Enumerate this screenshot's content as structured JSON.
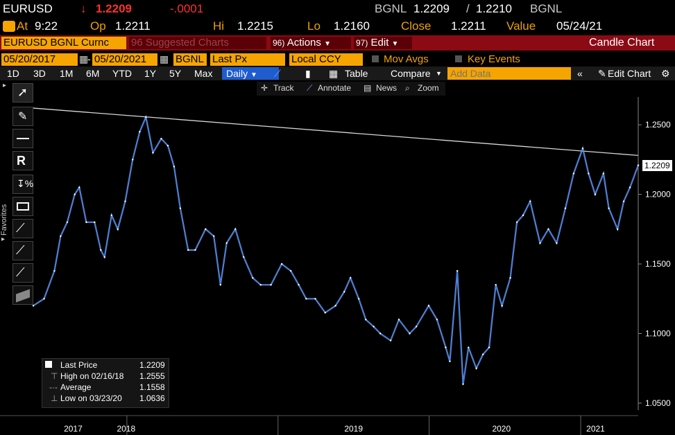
{
  "header": {
    "ticker": "EURUSD",
    "price": "1.2209",
    "change": "-.0001",
    "source_left": "BGNL",
    "bid": "1.2209",
    "ask": "1.2210",
    "source_right": "BGNL"
  },
  "quote": {
    "at_label": "At",
    "time": "9:22",
    "op_label": "Op",
    "open": "1.2211",
    "hi_label": "Hi",
    "high": "1.2215",
    "lo_label": "Lo",
    "low": "1.2160",
    "close_label": "Close",
    "close": "1.2211",
    "value_label": "Value",
    "value_date": "05/24/21"
  },
  "menu": {
    "security": "EURUSD BGNL Curnc",
    "suggested_num": "96",
    "suggested": "Suggested Charts",
    "actions_num": "96)",
    "actions": "Actions",
    "edit_num": "97)",
    "edit": "Edit",
    "chart_type": "Candle Chart"
  },
  "settings": {
    "start_date": "05/20/2017",
    "end_date": "05/20/2021",
    "source": "BGNL",
    "field": "Last Px",
    "currency": "Local CCY",
    "mov_avgs": "Mov Avgs",
    "key_events": "Key Events"
  },
  "toolbar": {
    "ranges": [
      "1D",
      "3D",
      "1M",
      "6M",
      "YTD",
      "1Y",
      "5Y",
      "Max"
    ],
    "period": "Daily",
    "table": "Table",
    "compare": "Compare",
    "add_data_placeholder": "Add Data",
    "edit_chart": "Edit Chart"
  },
  "chart_tools": {
    "track": "Track",
    "annotate": "Annotate",
    "news": "News",
    "zoom": "Zoom"
  },
  "sidebar": {
    "favorites": "Favorites"
  },
  "legend": {
    "last_label": "Last Price",
    "last_value": "1.2209",
    "high_label": "High on 02/16/18",
    "high_value": "1.2555",
    "avg_label": "Average",
    "avg_value": "1.1558",
    "low_label": "Low on 03/23/20",
    "low_value": "1.0636"
  },
  "colors": {
    "series": "#2f7fff",
    "accent": "#f5a400",
    "menu_bar": "#8b0a14",
    "down": "#ff3030"
  },
  "chart_data": {
    "type": "line",
    "title": "",
    "xlabel": "",
    "ylabel": "",
    "ylim": [
      1.045,
      1.27
    ],
    "y_ticks": [
      "1.0500",
      "1.1000",
      "1.1500",
      "1.2000",
      "1.2500"
    ],
    "y_tick_values": [
      1.05,
      1.1,
      1.15,
      1.2,
      1.25
    ],
    "x_ticks": [
      "2017",
      "2018",
      "2019",
      "2020",
      "2021"
    ],
    "x_tick_dates": [
      "2017-07-01",
      "2018-01-01",
      "2019-01-01",
      "2020-01-01",
      "2021-01-01"
    ],
    "xlim": [
      "2017-05-20",
      "2021-05-20"
    ],
    "last_price_tag": "1.2209",
    "trendline": {
      "start": [
        "2017-05-20",
        1.262
      ],
      "end": [
        "2021-05-20",
        1.228
      ]
    },
    "series": [
      {
        "values": [
          [
            "2017-05-20",
            1.12
          ],
          [
            "2017-06-15",
            1.125
          ],
          [
            "2017-07-10",
            1.145
          ],
          [
            "2017-07-25",
            1.17
          ],
          [
            "2017-08-10",
            1.18
          ],
          [
            "2017-08-28",
            1.2
          ],
          [
            "2017-09-08",
            1.205
          ],
          [
            "2017-09-25",
            1.18
          ],
          [
            "2017-10-15",
            1.18
          ],
          [
            "2017-10-30",
            1.16
          ],
          [
            "2017-11-08",
            1.155
          ],
          [
            "2017-11-25",
            1.185
          ],
          [
            "2017-12-10",
            1.175
          ],
          [
            "2017-12-28",
            1.195
          ],
          [
            "2018-01-15",
            1.225
          ],
          [
            "2018-02-01",
            1.245
          ],
          [
            "2018-02-16",
            1.2555
          ],
          [
            "2018-03-05",
            1.23
          ],
          [
            "2018-03-25",
            1.24
          ],
          [
            "2018-04-10",
            1.235
          ],
          [
            "2018-04-25",
            1.22
          ],
          [
            "2018-05-10",
            1.19
          ],
          [
            "2018-05-29",
            1.16
          ],
          [
            "2018-06-15",
            1.16
          ],
          [
            "2018-07-10",
            1.175
          ],
          [
            "2018-07-30",
            1.17
          ],
          [
            "2018-08-15",
            1.135
          ],
          [
            "2018-08-30",
            1.165
          ],
          [
            "2018-09-20",
            1.175
          ],
          [
            "2018-10-10",
            1.155
          ],
          [
            "2018-11-01",
            1.14
          ],
          [
            "2018-11-20",
            1.135
          ],
          [
            "2018-12-15",
            1.135
          ],
          [
            "2019-01-10",
            1.15
          ],
          [
            "2019-02-01",
            1.145
          ],
          [
            "2019-02-20",
            1.135
          ],
          [
            "2019-03-10",
            1.125
          ],
          [
            "2019-04-01",
            1.125
          ],
          [
            "2019-04-25",
            1.115
          ],
          [
            "2019-05-20",
            1.12
          ],
          [
            "2019-06-10",
            1.13
          ],
          [
            "2019-06-25",
            1.14
          ],
          [
            "2019-07-15",
            1.125
          ],
          [
            "2019-08-01",
            1.11
          ],
          [
            "2019-08-20",
            1.105
          ],
          [
            "2019-09-05",
            1.1
          ],
          [
            "2019-09-30",
            1.095
          ],
          [
            "2019-10-20",
            1.11
          ],
          [
            "2019-11-15",
            1.1
          ],
          [
            "2019-12-01",
            1.105
          ],
          [
            "2019-12-31",
            1.12
          ],
          [
            "2020-01-20",
            1.11
          ],
          [
            "2020-02-10",
            1.09
          ],
          [
            "2020-02-20",
            1.08
          ],
          [
            "2020-03-09",
            1.145
          ],
          [
            "2020-03-23",
            1.0636
          ],
          [
            "2020-04-05",
            1.09
          ],
          [
            "2020-04-24",
            1.075
          ],
          [
            "2020-05-10",
            1.085
          ],
          [
            "2020-05-25",
            1.09
          ],
          [
            "2020-06-10",
            1.135
          ],
          [
            "2020-06-25",
            1.12
          ],
          [
            "2020-07-15",
            1.14
          ],
          [
            "2020-07-31",
            1.18
          ],
          [
            "2020-08-15",
            1.185
          ],
          [
            "2020-09-01",
            1.195
          ],
          [
            "2020-09-25",
            1.165
          ],
          [
            "2020-10-15",
            1.175
          ],
          [
            "2020-11-04",
            1.165
          ],
          [
            "2020-11-25",
            1.19
          ],
          [
            "2020-12-15",
            1.215
          ],
          [
            "2021-01-06",
            1.233
          ],
          [
            "2021-01-20",
            1.215
          ],
          [
            "2021-02-05",
            1.2
          ],
          [
            "2021-02-25",
            1.215
          ],
          [
            "2021-03-10",
            1.19
          ],
          [
            "2021-03-31",
            1.175
          ],
          [
            "2021-04-15",
            1.195
          ],
          [
            "2021-04-30",
            1.205
          ],
          [
            "2021-05-20",
            1.2209
          ]
        ]
      }
    ]
  }
}
